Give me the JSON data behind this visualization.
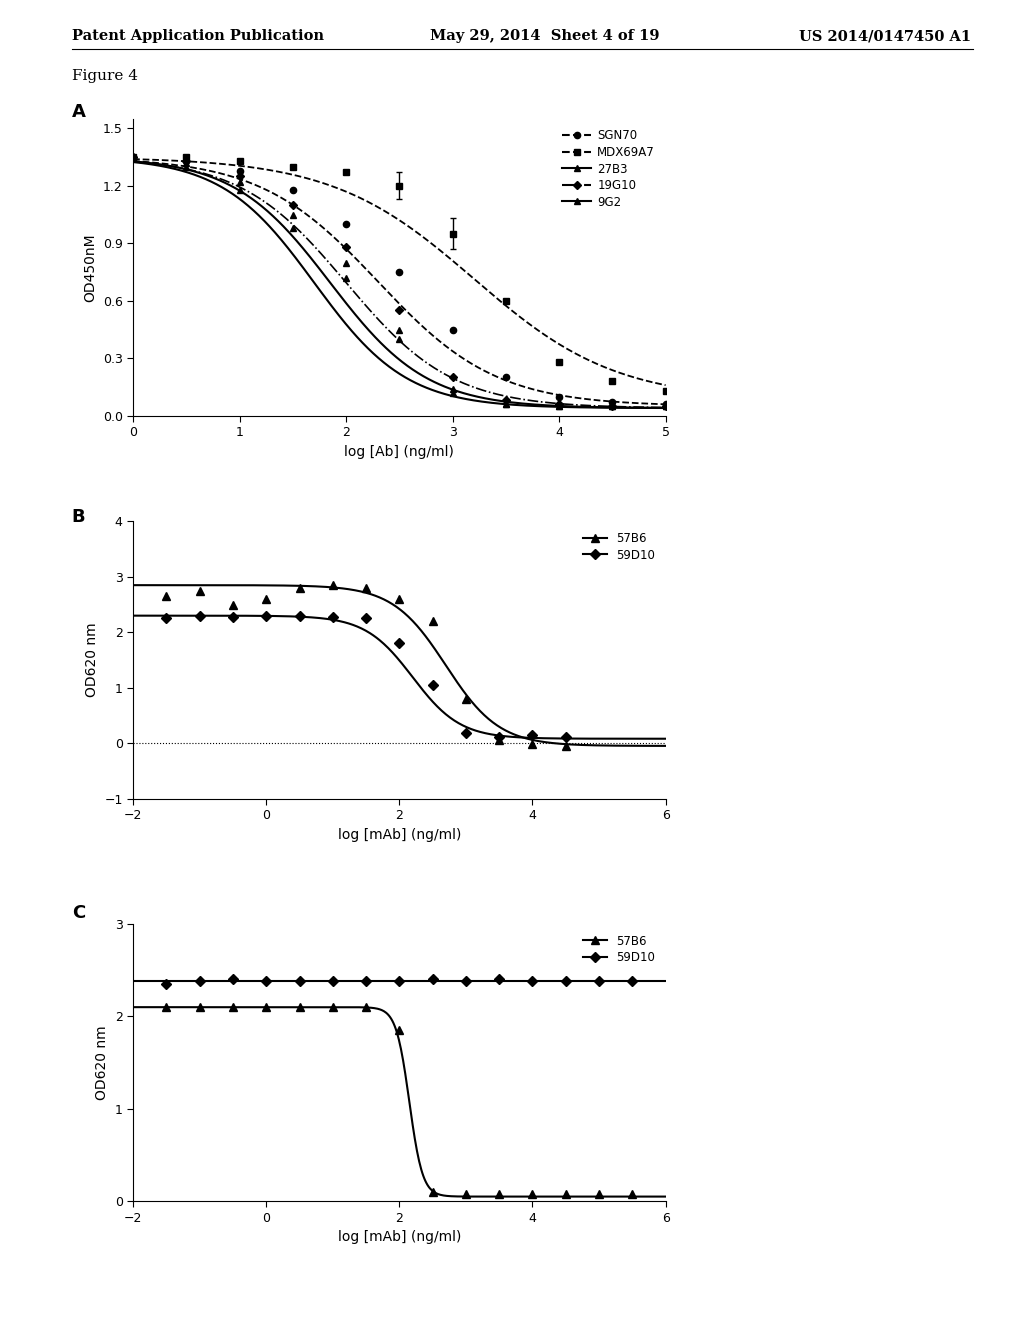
{
  "header_left": "Patent Application Publication",
  "header_mid": "May 29, 2014  Sheet 4 of 19",
  "header_right": "US 2014/0147450 A1",
  "figure_label": "Figure 4",
  "panel_A": {
    "label": "A",
    "ylabel": "OD450nM",
    "xlabel": "log [Ab] (ng/ml)",
    "xlim": [
      0,
      5
    ],
    "ylim": [
      0.0,
      1.55
    ],
    "yticks": [
      0.0,
      0.3,
      0.6,
      0.9,
      1.2,
      1.5
    ],
    "xticks": [
      0,
      1,
      2,
      3,
      4,
      5
    ]
  },
  "panel_B": {
    "label": "B",
    "ylabel": "OD620 nm",
    "xlabel": "log [mAb] (ng/ml)",
    "xlim": [
      -2,
      6
    ],
    "ylim": [
      -1,
      4
    ],
    "yticks": [
      -1,
      0,
      1,
      2,
      3,
      4
    ],
    "xticks": [
      -2,
      0,
      2,
      4,
      6
    ]
  },
  "panel_C": {
    "label": "C",
    "ylabel": "OD620 nm",
    "xlabel": "log [mAb] (ng/ml)",
    "xlim": [
      -2,
      6
    ],
    "ylim": [
      0,
      3
    ],
    "yticks": [
      0,
      1,
      2,
      3
    ],
    "xticks": [
      -2,
      0,
      2,
      4,
      6
    ]
  },
  "background_color": "#ffffff"
}
